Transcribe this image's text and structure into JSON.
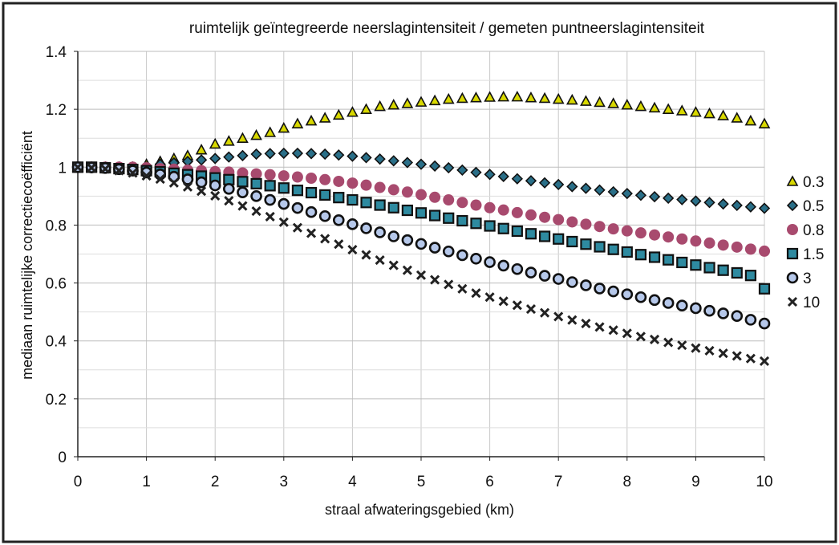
{
  "chart_data": {
    "type": "scatter",
    "title": "ruimtelijk geïntegreerde neerslagintensiteit / gemeten puntneerslagintensiteit",
    "xlabel": "straal afwateringsgebied (km)",
    "ylabel": "mediaan ruimtelijke correctiecoëfficiënt",
    "xlim": [
      0,
      10
    ],
    "ylim": [
      0,
      1.4
    ],
    "xticks": [
      "0",
      "1",
      "2",
      "3",
      "4",
      "5",
      "6",
      "7",
      "8",
      "9",
      "10"
    ],
    "yticks": [
      "0",
      "0.2",
      "0.4",
      "0.6",
      "0.8",
      "1",
      "1.2",
      "1.4"
    ],
    "grid": true,
    "legend_position": "right",
    "series": [
      {
        "name": "0.3",
        "marker": "triangle",
        "color": "#d8d800",
        "x": [
          0,
          0.2,
          0.4,
          0.6,
          0.8,
          1.0,
          1.2,
          1.4,
          1.6,
          1.8,
          2.0,
          2.2,
          2.4,
          2.6,
          2.8,
          3.0,
          3.2,
          3.4,
          3.6,
          3.8,
          4.0,
          4.2,
          4.4,
          4.6,
          4.8,
          5.0,
          5.2,
          5.4,
          5.6,
          5.8,
          6.0,
          6.2,
          6.4,
          6.6,
          6.8,
          7.0,
          7.2,
          7.4,
          7.6,
          7.8,
          8.0,
          8.2,
          8.4,
          8.6,
          8.8,
          9.0,
          9.2,
          9.4,
          9.6,
          9.8,
          10.0
        ],
        "y": [
          1.0,
          1.0,
          1.0,
          1.0,
          1.0,
          1.01,
          1.02,
          1.03,
          1.04,
          1.06,
          1.08,
          1.09,
          1.1,
          1.11,
          1.12,
          1.135,
          1.15,
          1.16,
          1.17,
          1.18,
          1.19,
          1.2,
          1.21,
          1.215,
          1.22,
          1.225,
          1.23,
          1.235,
          1.238,
          1.24,
          1.242,
          1.243,
          1.243,
          1.24,
          1.238,
          1.235,
          1.232,
          1.228,
          1.224,
          1.22,
          1.215,
          1.21,
          1.205,
          1.2,
          1.195,
          1.19,
          1.185,
          1.178,
          1.17,
          1.16,
          1.15
        ]
      },
      {
        "name": "0.5",
        "marker": "diamond",
        "color": "#2a6f88",
        "x": [
          0,
          0.2,
          0.4,
          0.6,
          0.8,
          1.0,
          1.2,
          1.4,
          1.6,
          1.8,
          2.0,
          2.2,
          2.4,
          2.6,
          2.8,
          3.0,
          3.2,
          3.4,
          3.6,
          3.8,
          4.0,
          4.2,
          4.4,
          4.6,
          4.8,
          5.0,
          5.2,
          5.4,
          5.6,
          5.8,
          6.0,
          6.2,
          6.4,
          6.6,
          6.8,
          7.0,
          7.2,
          7.4,
          7.6,
          7.8,
          8.0,
          8.2,
          8.4,
          8.6,
          8.8,
          9.0,
          9.2,
          9.4,
          9.6,
          9.8,
          10.0
        ],
        "y": [
          1.0,
          1.0,
          1.0,
          1.0,
          1.0,
          1.0,
          1.01,
          1.015,
          1.02,
          1.025,
          1.03,
          1.035,
          1.04,
          1.045,
          1.047,
          1.048,
          1.048,
          1.047,
          1.045,
          1.042,
          1.038,
          1.033,
          1.028,
          1.022,
          1.016,
          1.01,
          1.004,
          0.998,
          0.99,
          0.982,
          0.975,
          0.968,
          0.96,
          0.953,
          0.946,
          0.94,
          0.933,
          0.927,
          0.921,
          0.915,
          0.909,
          0.903,
          0.898,
          0.893,
          0.888,
          0.883,
          0.878,
          0.873,
          0.868,
          0.863,
          0.858
        ]
      },
      {
        "name": "0.8",
        "marker": "circle-filled",
        "color": "#a84a6e",
        "x": [
          0,
          0.2,
          0.4,
          0.6,
          0.8,
          1.0,
          1.2,
          1.4,
          1.6,
          1.8,
          2.0,
          2.2,
          2.4,
          2.6,
          2.8,
          3.0,
          3.2,
          3.4,
          3.6,
          3.8,
          4.0,
          4.2,
          4.4,
          4.6,
          4.8,
          5.0,
          5.2,
          5.4,
          5.6,
          5.8,
          6.0,
          6.2,
          6.4,
          6.6,
          6.8,
          7.0,
          7.2,
          7.4,
          7.6,
          7.8,
          8.0,
          8.2,
          8.4,
          8.6,
          8.8,
          9.0,
          9.2,
          9.4,
          9.6,
          9.8,
          10.0
        ],
        "y": [
          1.0,
          1.0,
          1.0,
          1.0,
          1.0,
          0.998,
          0.995,
          0.993,
          0.99,
          0.988,
          0.985,
          0.983,
          0.98,
          0.977,
          0.974,
          0.97,
          0.966,
          0.962,
          0.957,
          0.951,
          0.945,
          0.938,
          0.93,
          0.922,
          0.914,
          0.905,
          0.896,
          0.887,
          0.878,
          0.869,
          0.86,
          0.852,
          0.843,
          0.835,
          0.827,
          0.819,
          0.811,
          0.803,
          0.795,
          0.787,
          0.78,
          0.773,
          0.766,
          0.759,
          0.752,
          0.745,
          0.738,
          0.731,
          0.724,
          0.717,
          0.71
        ]
      },
      {
        "name": "1.5",
        "marker": "square",
        "color": "#2e8aa0",
        "x": [
          0,
          0.2,
          0.4,
          0.6,
          0.8,
          1.0,
          1.2,
          1.4,
          1.6,
          1.8,
          2.0,
          2.2,
          2.4,
          2.6,
          2.8,
          3.0,
          3.2,
          3.4,
          3.6,
          3.8,
          4.0,
          4.2,
          4.4,
          4.6,
          4.8,
          5.0,
          5.2,
          5.4,
          5.6,
          5.8,
          6.0,
          6.2,
          6.4,
          6.6,
          6.8,
          7.0,
          7.2,
          7.4,
          7.6,
          7.8,
          8.0,
          8.2,
          8.4,
          8.6,
          8.8,
          9.0,
          9.2,
          9.4,
          9.6,
          9.8,
          10.0
        ],
        "y": [
          1.0,
          1.0,
          0.998,
          0.995,
          0.992,
          0.988,
          0.984,
          0.979,
          0.974,
          0.969,
          0.963,
          0.957,
          0.95,
          0.943,
          0.936,
          0.928,
          0.92,
          0.912,
          0.904,
          0.895,
          0.887,
          0.878,
          0.869,
          0.86,
          0.851,
          0.842,
          0.833,
          0.824,
          0.815,
          0.806,
          0.797,
          0.788,
          0.779,
          0.77,
          0.761,
          0.752,
          0.743,
          0.734,
          0.725,
          0.716,
          0.707,
          0.698,
          0.689,
          0.68,
          0.671,
          0.662,
          0.653,
          0.644,
          0.635,
          0.626,
          0.58
        ]
      },
      {
        "name": "3",
        "marker": "circle-ring",
        "color": "#b6c8ea",
        "x": [
          0,
          0.2,
          0.4,
          0.6,
          0.8,
          1.0,
          1.2,
          1.4,
          1.6,
          1.8,
          2.0,
          2.2,
          2.4,
          2.6,
          2.8,
          3.0,
          3.2,
          3.4,
          3.6,
          3.8,
          4.0,
          4.2,
          4.4,
          4.6,
          4.8,
          5.0,
          5.2,
          5.4,
          5.6,
          5.8,
          6.0,
          6.2,
          6.4,
          6.6,
          6.8,
          7.0,
          7.2,
          7.4,
          7.6,
          7.8,
          8.0,
          8.2,
          8.4,
          8.6,
          8.8,
          9.0,
          9.2,
          9.4,
          9.6,
          9.8,
          10.0
        ],
        "y": [
          1.0,
          0.999,
          0.997,
          0.993,
          0.988,
          0.982,
          0.975,
          0.967,
          0.958,
          0.948,
          0.937,
          0.925,
          0.913,
          0.9,
          0.887,
          0.873,
          0.859,
          0.845,
          0.831,
          0.817,
          0.803,
          0.789,
          0.775,
          0.761,
          0.748,
          0.735,
          0.722,
          0.709,
          0.696,
          0.684,
          0.672,
          0.66,
          0.648,
          0.636,
          0.625,
          0.614,
          0.603,
          0.592,
          0.581,
          0.571,
          0.561,
          0.551,
          0.541,
          0.531,
          0.522,
          0.513,
          0.504,
          0.495,
          0.486,
          0.473,
          0.46
        ]
      },
      {
        "name": "10",
        "marker": "x",
        "color": "#222222",
        "x": [
          0,
          0.2,
          0.4,
          0.6,
          0.8,
          1.0,
          1.2,
          1.4,
          1.6,
          1.8,
          2.0,
          2.2,
          2.4,
          2.6,
          2.8,
          3.0,
          3.2,
          3.4,
          3.6,
          3.8,
          4.0,
          4.2,
          4.4,
          4.6,
          4.8,
          5.0,
          5.2,
          5.4,
          5.6,
          5.8,
          6.0,
          6.2,
          6.4,
          6.6,
          6.8,
          7.0,
          7.2,
          7.4,
          7.6,
          7.8,
          8.0,
          8.2,
          8.4,
          8.6,
          8.8,
          9.0,
          9.2,
          9.4,
          9.6,
          9.8,
          10.0
        ],
        "y": [
          1.0,
          0.998,
          0.994,
          0.988,
          0.98,
          0.97,
          0.959,
          0.946,
          0.932,
          0.917,
          0.901,
          0.884,
          0.866,
          0.848,
          0.829,
          0.81,
          0.791,
          0.772,
          0.753,
          0.734,
          0.715,
          0.697,
          0.679,
          0.661,
          0.644,
          0.627,
          0.611,
          0.595,
          0.58,
          0.565,
          0.551,
          0.537,
          0.523,
          0.51,
          0.497,
          0.484,
          0.472,
          0.46,
          0.448,
          0.437,
          0.426,
          0.415,
          0.405,
          0.395,
          0.385,
          0.375,
          0.366,
          0.357,
          0.348,
          0.339,
          0.33
        ]
      }
    ]
  }
}
